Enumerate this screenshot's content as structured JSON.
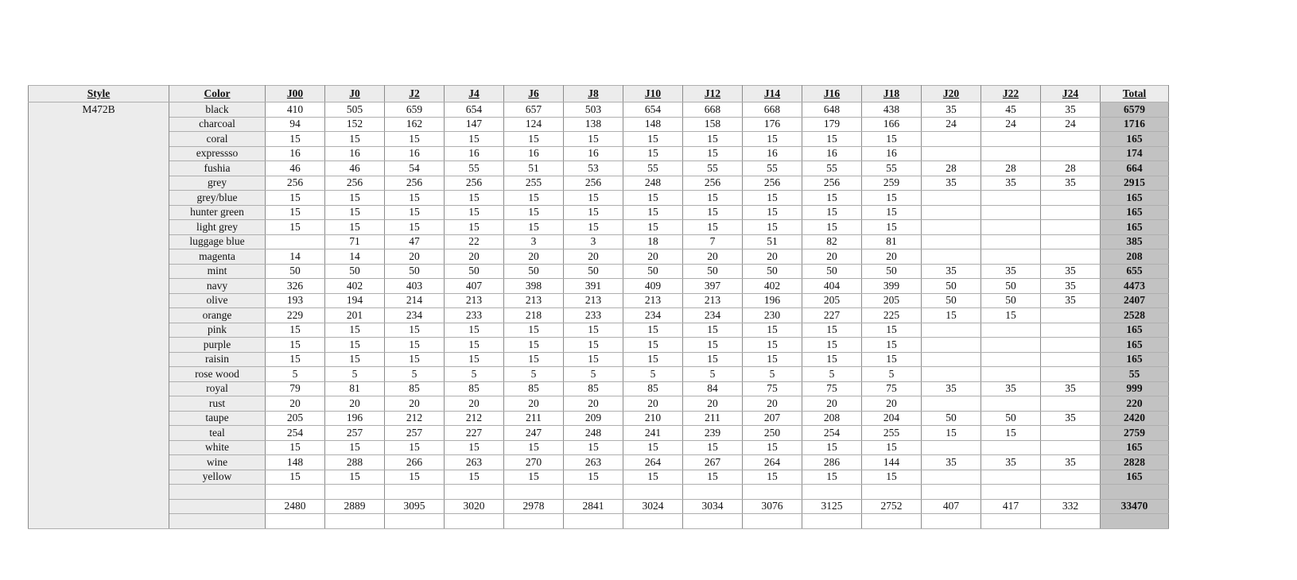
{
  "page": {
    "background": "#ffffff"
  },
  "table": {
    "headers": [
      "Style",
      "Color",
      "J00",
      "J0",
      "J2",
      "J4",
      "J6",
      "J8",
      "J10",
      "J12",
      "J14",
      "J16",
      "J18",
      "J20",
      "J22",
      "J24",
      "Total"
    ],
    "style_label": "M472B",
    "rows": [
      {
        "color": "black",
        "values": [
          "410",
          "505",
          "659",
          "654",
          "657",
          "503",
          "654",
          "668",
          "668",
          "648",
          "438",
          "35",
          "45",
          "35"
        ],
        "total": "6579"
      },
      {
        "color": "charcoal",
        "values": [
          "94",
          "152",
          "162",
          "147",
          "124",
          "138",
          "148",
          "158",
          "176",
          "179",
          "166",
          "24",
          "24",
          "24"
        ],
        "total": "1716"
      },
      {
        "color": "coral",
        "values": [
          "15",
          "15",
          "15",
          "15",
          "15",
          "15",
          "15",
          "15",
          "15",
          "15",
          "15",
          "",
          "",
          ""
        ],
        "total": "165"
      },
      {
        "color": "expressso",
        "values": [
          "16",
          "16",
          "16",
          "16",
          "16",
          "16",
          "15",
          "15",
          "16",
          "16",
          "16",
          "",
          "",
          ""
        ],
        "total": "174"
      },
      {
        "color": "fushia",
        "values": [
          "46",
          "46",
          "54",
          "55",
          "51",
          "53",
          "55",
          "55",
          "55",
          "55",
          "55",
          "28",
          "28",
          "28"
        ],
        "total": "664"
      },
      {
        "color": "grey",
        "values": [
          "256",
          "256",
          "256",
          "256",
          "255",
          "256",
          "248",
          "256",
          "256",
          "256",
          "259",
          "35",
          "35",
          "35"
        ],
        "total": "2915"
      },
      {
        "color": "grey/blue",
        "values": [
          "15",
          "15",
          "15",
          "15",
          "15",
          "15",
          "15",
          "15",
          "15",
          "15",
          "15",
          "",
          "",
          ""
        ],
        "total": "165"
      },
      {
        "color": "hunter green",
        "values": [
          "15",
          "15",
          "15",
          "15",
          "15",
          "15",
          "15",
          "15",
          "15",
          "15",
          "15",
          "",
          "",
          ""
        ],
        "total": "165"
      },
      {
        "color": "light grey",
        "values": [
          "15",
          "15",
          "15",
          "15",
          "15",
          "15",
          "15",
          "15",
          "15",
          "15",
          "15",
          "",
          "",
          ""
        ],
        "total": "165"
      },
      {
        "color": "luggage blue",
        "values": [
          "",
          "71",
          "47",
          "22",
          "3",
          "3",
          "18",
          "7",
          "51",
          "82",
          "81",
          "",
          "",
          ""
        ],
        "total": "385"
      },
      {
        "color": "magenta",
        "values": [
          "14",
          "14",
          "20",
          "20",
          "20",
          "20",
          "20",
          "20",
          "20",
          "20",
          "20",
          "",
          "",
          ""
        ],
        "total": "208"
      },
      {
        "color": "mint",
        "values": [
          "50",
          "50",
          "50",
          "50",
          "50",
          "50",
          "50",
          "50",
          "50",
          "50",
          "50",
          "35",
          "35",
          "35"
        ],
        "total": "655"
      },
      {
        "color": "navy",
        "values": [
          "326",
          "402",
          "403",
          "407",
          "398",
          "391",
          "409",
          "397",
          "402",
          "404",
          "399",
          "50",
          "50",
          "35"
        ],
        "total": "4473"
      },
      {
        "color": "olive",
        "values": [
          "193",
          "194",
          "214",
          "213",
          "213",
          "213",
          "213",
          "213",
          "196",
          "205",
          "205",
          "50",
          "50",
          "35"
        ],
        "total": "2407"
      },
      {
        "color": "orange",
        "values": [
          "229",
          "201",
          "234",
          "233",
          "218",
          "233",
          "234",
          "234",
          "230",
          "227",
          "225",
          "15",
          "15",
          ""
        ],
        "total": "2528"
      },
      {
        "color": "pink",
        "values": [
          "15",
          "15",
          "15",
          "15",
          "15",
          "15",
          "15",
          "15",
          "15",
          "15",
          "15",
          "",
          "",
          ""
        ],
        "total": "165"
      },
      {
        "color": "purple",
        "values": [
          "15",
          "15",
          "15",
          "15",
          "15",
          "15",
          "15",
          "15",
          "15",
          "15",
          "15",
          "",
          "",
          ""
        ],
        "total": "165"
      },
      {
        "color": "raisin",
        "values": [
          "15",
          "15",
          "15",
          "15",
          "15",
          "15",
          "15",
          "15",
          "15",
          "15",
          "15",
          "",
          "",
          ""
        ],
        "total": "165"
      },
      {
        "color": "rose wood",
        "values": [
          "5",
          "5",
          "5",
          "5",
          "5",
          "5",
          "5",
          "5",
          "5",
          "5",
          "5",
          "",
          "",
          ""
        ],
        "total": "55"
      },
      {
        "color": "royal",
        "values": [
          "79",
          "81",
          "85",
          "85",
          "85",
          "85",
          "85",
          "84",
          "75",
          "75",
          "75",
          "35",
          "35",
          "35"
        ],
        "total": "999"
      },
      {
        "color": "rust",
        "values": [
          "20",
          "20",
          "20",
          "20",
          "20",
          "20",
          "20",
          "20",
          "20",
          "20",
          "20",
          "",
          "",
          ""
        ],
        "total": "220"
      },
      {
        "color": "taupe",
        "values": [
          "205",
          "196",
          "212",
          "212",
          "211",
          "209",
          "210",
          "211",
          "207",
          "208",
          "204",
          "50",
          "50",
          "35"
        ],
        "total": "2420"
      },
      {
        "color": "teal",
        "values": [
          "254",
          "257",
          "257",
          "227",
          "247",
          "248",
          "241",
          "239",
          "250",
          "254",
          "255",
          "15",
          "15",
          ""
        ],
        "total": "2759"
      },
      {
        "color": "white",
        "values": [
          "15",
          "15",
          "15",
          "15",
          "15",
          "15",
          "15",
          "15",
          "15",
          "15",
          "15",
          "",
          "",
          ""
        ],
        "total": "165"
      },
      {
        "color": "wine",
        "values": [
          "148",
          "288",
          "266",
          "263",
          "270",
          "263",
          "264",
          "267",
          "264",
          "286",
          "144",
          "35",
          "35",
          "35"
        ],
        "total": "2828"
      },
      {
        "color": "yellow",
        "values": [
          "15",
          "15",
          "15",
          "15",
          "15",
          "15",
          "15",
          "15",
          "15",
          "15",
          "15",
          "",
          "",
          ""
        ],
        "total": "165"
      }
    ],
    "column_totals": [
      "2480",
      "2889",
      "3095",
      "3020",
      "2978",
      "2841",
      "3024",
      "3034",
      "3076",
      "3125",
      "2752",
      "407",
      "417",
      "332"
    ],
    "grand_total": "33470",
    "colors": {
      "header_bg": "#ececec",
      "label_bg": "#ececec",
      "total_col_bg": "#c2c2c2",
      "border_dark": "#8a8a8a",
      "border_light": "#aeaeae",
      "text": "#111111"
    }
  }
}
